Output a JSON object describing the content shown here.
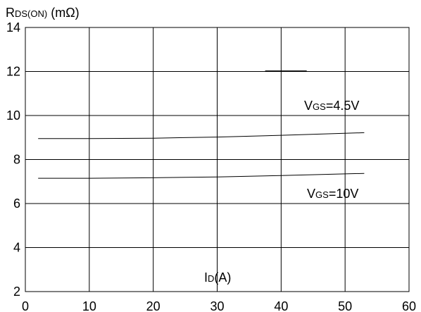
{
  "chart_data": {
    "type": "line",
    "ylabel_main": "R",
    "ylabel_sub": "DS(ON)",
    "ylabel_unit": " (mΩ)",
    "xlabel_main": "I",
    "xlabel_sub": "D",
    "xlabel_unit": "(A)",
    "xlim": [
      0,
      60
    ],
    "ylim": [
      2,
      14
    ],
    "x_ticks": [
      0,
      10,
      20,
      30,
      40,
      50,
      60
    ],
    "y_ticks": [
      2,
      4,
      6,
      8,
      10,
      12,
      14
    ],
    "grid": true,
    "series": [
      {
        "label_main": "V",
        "label_sub": "GS",
        "label_rest": "=4.5V",
        "x": [
          2,
          10,
          20,
          30,
          40,
          53
        ],
        "y": [
          8.95,
          8.95,
          8.97,
          9.02,
          9.1,
          9.22
        ]
      },
      {
        "label_main": "V",
        "label_sub": "GS",
        "label_rest": "=10V",
        "x": [
          2,
          10,
          20,
          30,
          40,
          53
        ],
        "y": [
          7.15,
          7.15,
          7.17,
          7.21,
          7.27,
          7.37
        ]
      }
    ],
    "annotation_segment": {
      "x": [
        37.5,
        44
      ],
      "y": [
        12.02,
        12.02
      ]
    }
  }
}
